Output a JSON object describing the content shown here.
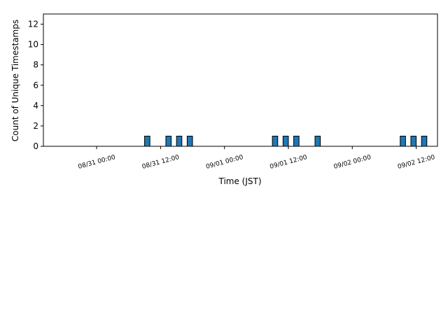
{
  "chart_data": {
    "type": "histogram",
    "xlabel": "Time (JST)",
    "ylabel": "Count of Unique Timestamps",
    "bins": [
      "08/31 09:00",
      "08/31 10:00",
      "08/31 13:00",
      "08/31 14:00",
      "08/31 15:00",
      "08/31 16:00",
      "08/31 17:00",
      "08/31 18:00",
      "09/01 09:00",
      "09/01 10:00",
      "09/01 11:00",
      "09/01 12:00",
      "09/01 13:00",
      "09/01 14:00",
      "09/01 17:00",
      "09/01 18:00",
      "09/02 09:00",
      "09/02 10:00",
      "09/02 11:00",
      "09/02 12:00",
      "09/02 13:00",
      "09/02 14:00"
    ],
    "counts": [
      1,
      0,
      1,
      0,
      1,
      0,
      1,
      0,
      1,
      0,
      1,
      0,
      1,
      0,
      1,
      0,
      1,
      0,
      1,
      0,
      1
    ],
    "color": "#1f77b4",
    "edgecolor": "#000000",
    "xlim": [
      "08/30 14:00",
      "09/02 16:00"
    ],
    "xticks": [
      "08/31 00:00",
      "08/31 12:00",
      "09/01 00:00",
      "09/01 12:00",
      "09/02 00:00",
      "09/02 12:00"
    ],
    "ylim": [
      0,
      13
    ],
    "yticks": [
      0,
      2,
      4,
      6,
      8,
      10,
      12
    ]
  }
}
